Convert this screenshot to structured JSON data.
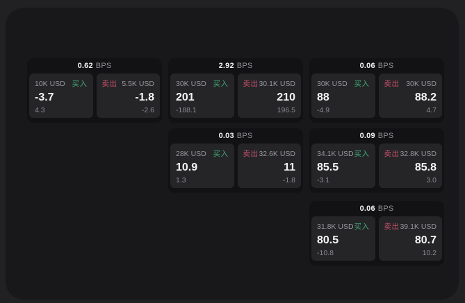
{
  "labels": {
    "bps_unit": "BPS",
    "buy_side": "买入",
    "sell_side": "卖出"
  },
  "colors": {
    "background_outer": "#212124",
    "background_container": "#18181a",
    "card_background": "#121214",
    "tile_background": "#252528",
    "buy_accent": "#3fa873",
    "sell_accent": "#c9516a",
    "text_primary": "#f5f5f6",
    "text_secondary": "#97979c"
  },
  "cards": [
    {
      "col": 1,
      "row": 1,
      "bps": "0.62",
      "buy": {
        "size": "10K USD",
        "price": "-3.7",
        "delta": "4.3"
      },
      "sell": {
        "size": "5.5K USD",
        "price": "-1.8",
        "delta": "-2.6"
      }
    },
    {
      "col": 2,
      "row": 1,
      "bps": "2.92",
      "buy": {
        "size": "30K USD",
        "price": "201",
        "delta": "-188.1"
      },
      "sell": {
        "size": "30.1K USD",
        "price": "210",
        "delta": "196.5"
      }
    },
    {
      "col": 3,
      "row": 1,
      "bps": "0.06",
      "buy": {
        "size": "30K USD",
        "price": "88",
        "delta": "-4.9"
      },
      "sell": {
        "size": "30K USD",
        "price": "88.2",
        "delta": "4.7"
      }
    },
    {
      "col": 2,
      "row": 2,
      "bps": "0.03",
      "buy": {
        "size": "28K USD",
        "price": "10.9",
        "delta": "1.3"
      },
      "sell": {
        "size": "32.6K USD",
        "price": "11",
        "delta": "-1.8"
      }
    },
    {
      "col": 3,
      "row": 2,
      "bps": "0.09",
      "buy": {
        "size": "34.1K USD",
        "price": "85.5",
        "delta": "-3.1"
      },
      "sell": {
        "size": "32.8K USD",
        "price": "85.8",
        "delta": "3.0"
      }
    },
    {
      "col": 3,
      "row": 3,
      "bps": "0.06",
      "buy": {
        "size": "31.8K USD",
        "price": "80.5",
        "delta": "-10.8"
      },
      "sell": {
        "size": "39.1K USD",
        "price": "80.7",
        "delta": "10.2"
      }
    }
  ]
}
